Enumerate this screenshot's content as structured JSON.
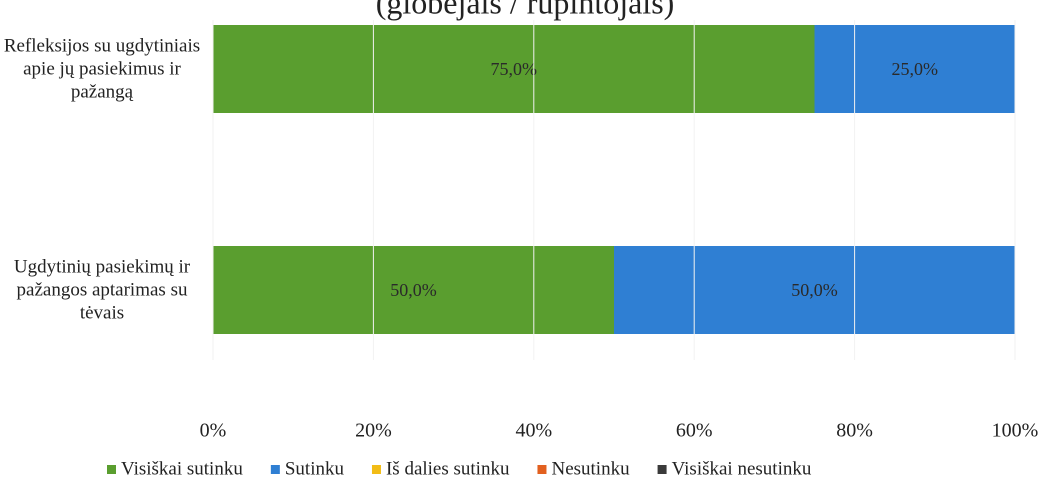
{
  "chart_data": {
    "type": "stacked_barh",
    "title": "(globėjais / rūpintojais)",
    "categories": [
      "Refleksijos su ugdytiniais apie jų pasiekimus ir pažangą",
      "Ugdytinių pasiekimų ir pažangos aptarimas su tėvais"
    ],
    "series": [
      {
        "name": "Visiškai sutinku",
        "color": "#5a9e2f",
        "values": [
          75,
          50
        ],
        "value_labels": [
          "75,0%",
          "50,0%"
        ]
      },
      {
        "name": "Sutinku",
        "color": "#2f7fd3",
        "values": [
          25,
          50
        ],
        "value_labels": [
          "25,0%",
          "50,0%"
        ]
      },
      {
        "name": "Iš dalies sutinku",
        "color": "#f2bc16",
        "values": [
          0,
          0
        ]
      },
      {
        "name": "Nesutinku",
        "color": "#e2601f",
        "values": [
          0,
          0
        ]
      },
      {
        "name": "Visiškai nesutinku",
        "color": "#3a3a3a",
        "values": [
          0,
          0
        ]
      }
    ],
    "xlim": [
      0,
      100
    ],
    "xticks": [
      {
        "value": 0,
        "label": "0%"
      },
      {
        "value": 20,
        "label": "20%"
      },
      {
        "value": 40,
        "label": "40%"
      },
      {
        "value": 60,
        "label": "60%"
      },
      {
        "value": 80,
        "label": "80%"
      },
      {
        "value": 100,
        "label": "100%"
      }
    ],
    "legend": "bottom"
  }
}
